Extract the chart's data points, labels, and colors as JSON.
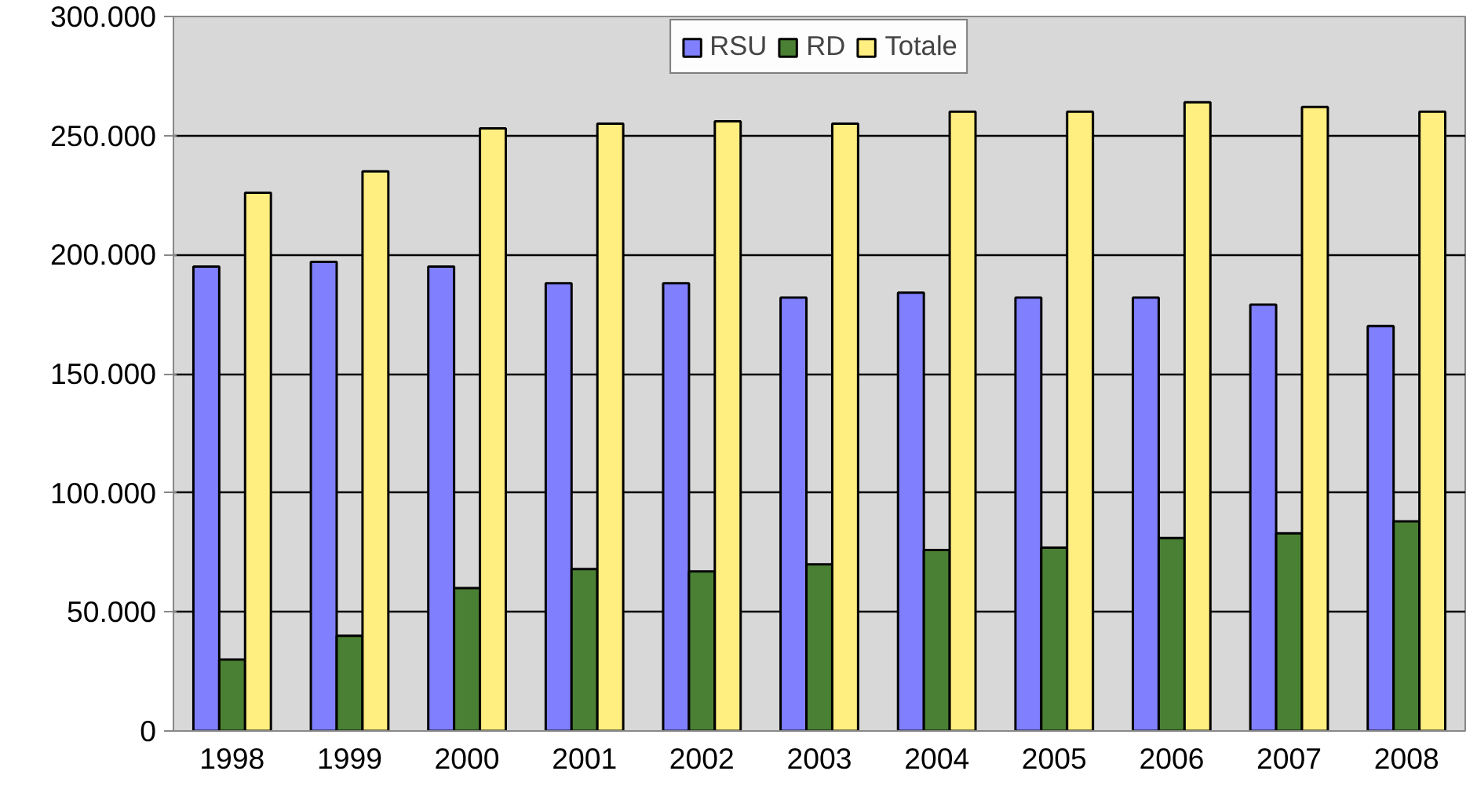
{
  "chart_data": {
    "type": "bar",
    "categories": [
      "1998",
      "1999",
      "2000",
      "2001",
      "2002",
      "2003",
      "2004",
      "2005",
      "2006",
      "2007",
      "2008"
    ],
    "series": [
      {
        "name": "RSU",
        "color": "#8080ff",
        "values": [
          195000,
          197000,
          195000,
          188000,
          188000,
          182000,
          184000,
          182000,
          182000,
          179000,
          170000
        ]
      },
      {
        "name": "RD",
        "color": "#4a8033",
        "values": [
          30000,
          40000,
          60000,
          68000,
          67000,
          70000,
          76000,
          77000,
          81000,
          83000,
          88000
        ]
      },
      {
        "name": "Totale",
        "color": "#ffee80",
        "values": [
          226000,
          235000,
          253000,
          255000,
          256000,
          255000,
          260000,
          260000,
          264000,
          262000,
          260000
        ]
      }
    ],
    "ylim": [
      0,
      300000
    ],
    "yticks": [
      0,
      {
        "value": 50000,
        "label": "50.000"
      },
      {
        "value": 100000,
        "label": "100.000"
      },
      {
        "value": 150000,
        "label": "150.000"
      },
      {
        "value": 200000,
        "label": "200.000"
      },
      {
        "value": 250000,
        "label": "250.000"
      },
      {
        "value": 300000,
        "label": "300.000"
      }
    ],
    "grid": "y",
    "legend": "top"
  }
}
